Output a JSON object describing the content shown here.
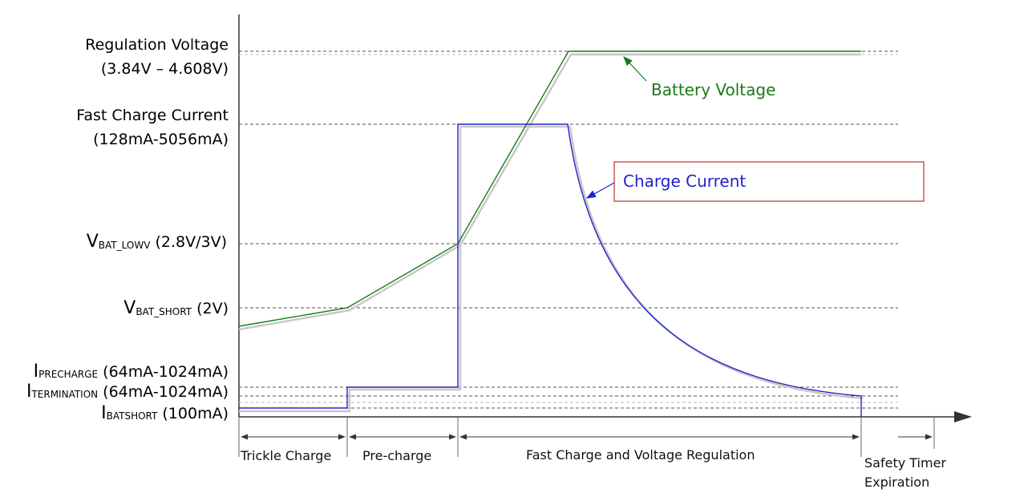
{
  "levels": {
    "regulation_voltage": {
      "name": "Regulation Voltage",
      "range": "(3.84V – 4.608V)"
    },
    "fast_charge_current": {
      "name": "Fast Charge Current",
      "range": "(128mA-5056mA)"
    },
    "vbat_lowv": {
      "main": "V",
      "sub": "BAT_LOWV",
      "value": " (2.8V/3V)"
    },
    "vbat_short": {
      "main": "V",
      "sub": "BAT_SHORT",
      "value": " (2V)"
    },
    "iprecharge": {
      "main": "I",
      "sub": "PRECHARGE",
      "value": " (64mA-1024mA)"
    },
    "itermination": {
      "main": "I",
      "sub": "TERMINATION",
      "value": " (64mA-1024mA)"
    },
    "ibatshort": {
      "main": "I",
      "sub": "BATSHORT",
      "value": " (100mA)"
    }
  },
  "callouts": {
    "battery_voltage": "Battery Voltage",
    "charge_current": "Charge Current"
  },
  "phases": {
    "trickle": "Trickle Charge",
    "precharge": "Pre-charge",
    "fast": "Fast Charge and Voltage Regulation",
    "safety_line1": "Safety Timer",
    "safety_line2": "Expiration"
  },
  "colors": {
    "battery_voltage": "#1a7a1a",
    "charge_current": "#2222cc",
    "callout_box_border": "#c00000",
    "shadow": "#c8c8c8"
  }
}
